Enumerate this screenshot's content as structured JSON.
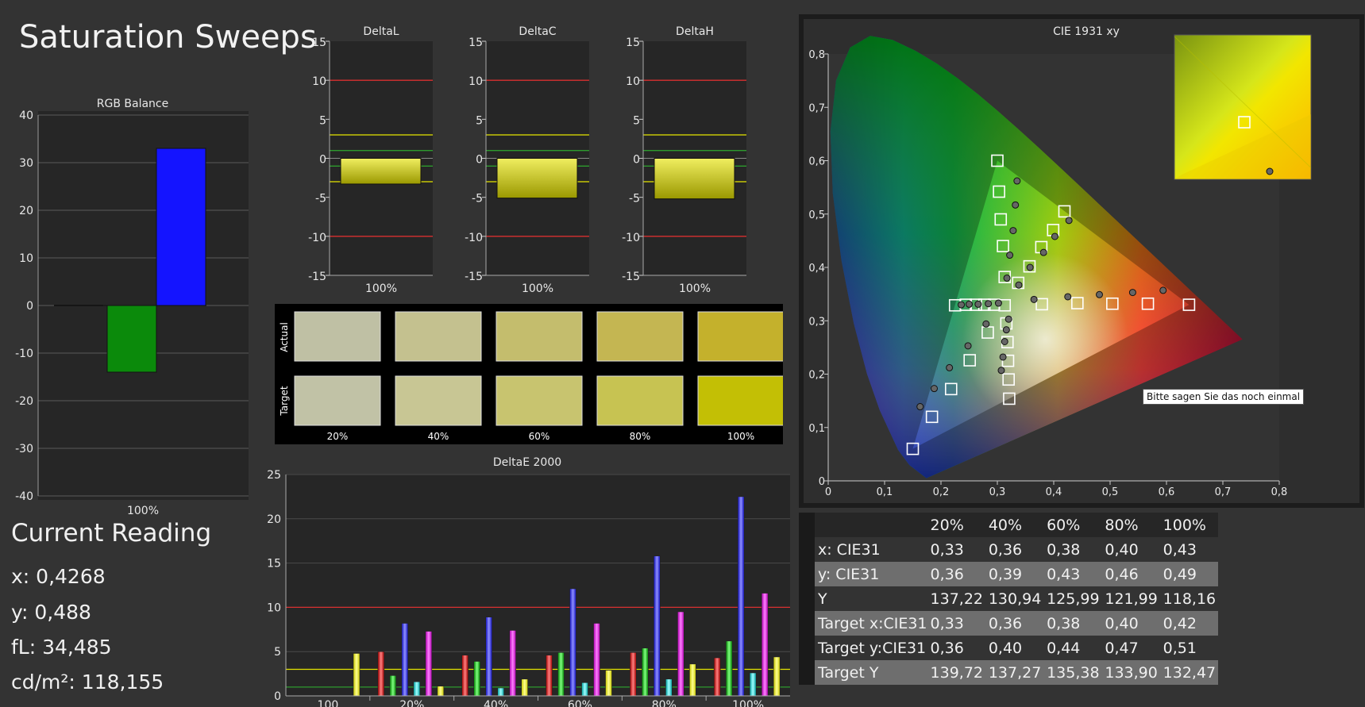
{
  "title": "Saturation Sweeps",
  "rgb_balance": {
    "title": "RGB Balance",
    "y_ticks": [
      "40",
      "30",
      "20",
      "10",
      "0",
      "-10",
      "-20",
      "-30",
      "-40"
    ],
    "x_label": "100%",
    "colors": {
      "red": "#c00000",
      "green": "#0b8a0b",
      "blue": "#1414ff"
    }
  },
  "delta_charts": [
    {
      "title": "DeltaL",
      "x_label": "100%"
    },
    {
      "title": "DeltaC",
      "x_label": "100%"
    },
    {
      "title": "DeltaH",
      "x_label": "100%"
    }
  ],
  "delta_y_ticks": [
    "15",
    "10",
    "5",
    "0",
    "-5",
    "-10",
    "-15"
  ],
  "swatches": {
    "row_labels": [
      "Actual",
      "Target"
    ],
    "labels": [
      "20%",
      "40%",
      "60%",
      "80%",
      "100%"
    ],
    "actual_colors": [
      "#bfc0a4",
      "#c4c18f",
      "#c4bd6d",
      "#c4b652",
      "#c4b12c"
    ],
    "target_colors": [
      "#c1c2a6",
      "#c8c694",
      "#c8c46f",
      "#c7c352",
      "#c3bf05"
    ]
  },
  "deltae_title": "DeltaE 2000",
  "cie_title": "CIE 1931 xy",
  "tooltip": "Bitte sagen Sie das noch einmal",
  "current_reading": {
    "title": "Current Reading",
    "lines": [
      "x: 0,4268",
      "y: 0,488",
      "fL: 34,485",
      "cd/m²: 118,155"
    ]
  },
  "table": {
    "headers": [
      "20%",
      "40%",
      "60%",
      "80%",
      "100%"
    ],
    "rows": [
      {
        "label": "x: CIE31",
        "values": [
          "0,33",
          "0,36",
          "0,38",
          "0,40",
          "0,43"
        ]
      },
      {
        "label": "y: CIE31",
        "values": [
          "0,36",
          "0,39",
          "0,43",
          "0,46",
          "0,49"
        ]
      },
      {
        "label": "Y",
        "values": [
          "137,22",
          "130,94",
          "125,99",
          "121,99",
          "118,16"
        ]
      },
      {
        "label": "Target x:CIE31",
        "values": [
          "0,33",
          "0,36",
          "0,38",
          "0,40",
          "0,42"
        ]
      },
      {
        "label": "Target y:CIE31",
        "values": [
          "0,36",
          "0,40",
          "0,44",
          "0,47",
          "0,51"
        ]
      },
      {
        "label": "Target Y",
        "values": [
          "139,72",
          "137,27",
          "135,38",
          "133,90",
          "132,47"
        ]
      }
    ]
  },
  "chart_data": [
    {
      "type": "bar",
      "title": "RGB Balance",
      "categories": [
        "100%"
      ],
      "series": [
        {
          "name": "Red",
          "values": [
            0
          ]
        },
        {
          "name": "Green",
          "values": [
            -14
          ]
        },
        {
          "name": "Blue",
          "values": [
            33
          ]
        }
      ],
      "ylim": [
        -40,
        40
      ],
      "grid": true
    },
    {
      "type": "bar",
      "title": "DeltaL",
      "categories": [
        "100%"
      ],
      "values": [
        -3.3
      ],
      "ylim": [
        -15,
        15
      ],
      "reference_lines": [
        10,
        -10,
        3,
        -3,
        1,
        -1
      ]
    },
    {
      "type": "bar",
      "title": "DeltaC",
      "categories": [
        "100%"
      ],
      "values": [
        -5.1
      ],
      "ylim": [
        -15,
        15
      ],
      "reference_lines": [
        10,
        -10,
        3,
        -3,
        1,
        -1
      ]
    },
    {
      "type": "bar",
      "title": "DeltaH",
      "categories": [
        "100%"
      ],
      "values": [
        -5.2
      ],
      "ylim": [
        -15,
        15
      ],
      "reference_lines": [
        10,
        -10,
        3,
        -3,
        1,
        -1
      ]
    },
    {
      "type": "bar",
      "title": "DeltaE 2000",
      "categories": [
        "100",
        "20%",
        "40%",
        "60%",
        "80%",
        "100%"
      ],
      "series": [
        {
          "name": "Red",
          "values": [
            0,
            5.0,
            4.6,
            4.6,
            4.9,
            4.3
          ]
        },
        {
          "name": "Green",
          "values": [
            0,
            2.3,
            3.9,
            4.9,
            5.4,
            6.2
          ]
        },
        {
          "name": "Blue",
          "values": [
            0,
            8.2,
            8.9,
            12.1,
            15.8,
            22.5
          ]
        },
        {
          "name": "Cyan",
          "values": [
            0,
            1.6,
            0.9,
            1.5,
            1.9,
            2.6
          ]
        },
        {
          "name": "Magenta",
          "values": [
            0,
            7.3,
            7.4,
            8.2,
            9.5,
            11.6
          ]
        },
        {
          "name": "Yellow",
          "values": [
            4.8,
            1.1,
            1.9,
            2.9,
            3.6,
            4.4
          ]
        }
      ],
      "ylim": [
        0,
        25
      ],
      "reference_lines": [
        10,
        3,
        1
      ]
    },
    {
      "type": "scatter",
      "title": "CIE 1931 xy",
      "xlim": [
        0,
        0.8
      ],
      "ylim": [
        0,
        0.8
      ],
      "x_ticks": [
        "0",
        "0,1",
        "0,2",
        "0,3",
        "0,4",
        "0,5",
        "0,6",
        "0,7",
        "0,8"
      ],
      "y_ticks": [
        "0",
        "0,1",
        "0,2",
        "0,3",
        "0,4",
        "0,5",
        "0,6",
        "0,7",
        "0,8"
      ],
      "series": [
        {
          "name": "Target",
          "marker": "square",
          "points": [
            [
              0.64,
              0.33
            ],
            [
              0.567,
              0.332
            ],
            [
              0.504,
              0.332
            ],
            [
              0.442,
              0.333
            ],
            [
              0.379,
              0.331
            ],
            [
              0.3,
              0.6
            ],
            [
              0.303,
              0.542
            ],
            [
              0.306,
              0.49
            ],
            [
              0.31,
              0.44
            ],
            [
              0.313,
              0.382
            ],
            [
              0.15,
              0.06
            ],
            [
              0.184,
              0.12
            ],
            [
              0.218,
              0.172
            ],
            [
              0.251,
              0.226
            ],
            [
              0.283,
              0.278
            ],
            [
              0.225,
              0.329
            ],
            [
              0.244,
              0.33
            ],
            [
              0.262,
              0.33
            ],
            [
              0.277,
              0.33
            ],
            [
              0.294,
              0.33
            ],
            [
              0.313,
              0.329
            ],
            [
              0.321,
              0.154
            ],
            [
              0.32,
              0.19
            ],
            [
              0.319,
              0.225
            ],
            [
              0.318,
              0.26
            ],
            [
              0.316,
              0.295
            ],
            [
              0.419,
              0.505
            ],
            [
              0.399,
              0.47
            ],
            [
              0.378,
              0.438
            ],
            [
              0.357,
              0.402
            ],
            [
              0.337,
              0.371
            ]
          ]
        },
        {
          "name": "Measured",
          "marker": "circle",
          "points": [
            [
              0.594,
              0.357
            ],
            [
              0.54,
              0.353
            ],
            [
              0.481,
              0.349
            ],
            [
              0.425,
              0.345
            ],
            [
              0.365,
              0.34
            ],
            [
              0.335,
              0.562
            ],
            [
              0.332,
              0.517
            ],
            [
              0.328,
              0.469
            ],
            [
              0.322,
              0.423
            ],
            [
              0.317,
              0.38
            ],
            [
              0.163,
              0.139
            ],
            [
              0.188,
              0.173
            ],
            [
              0.215,
              0.212
            ],
            [
              0.248,
              0.253
            ],
            [
              0.28,
              0.294
            ],
            [
              0.236,
              0.33
            ],
            [
              0.25,
              0.331
            ],
            [
              0.266,
              0.331
            ],
            [
              0.284,
              0.332
            ],
            [
              0.302,
              0.333
            ],
            [
              0.307,
              0.207
            ],
            [
              0.31,
              0.232
            ],
            [
              0.313,
              0.261
            ],
            [
              0.316,
              0.283
            ],
            [
              0.32,
              0.303
            ],
            [
              0.427,
              0.488
            ],
            [
              0.402,
              0.458
            ],
            [
              0.382,
              0.428
            ],
            [
              0.358,
              0.4
            ],
            [
              0.338,
              0.367
            ]
          ]
        }
      ],
      "inset_points": [
        {
          "marker": "square",
          "x": 0.419,
          "y": 0.505
        },
        {
          "marker": "circle",
          "x": 0.427,
          "y": 0.488
        }
      ]
    }
  ]
}
